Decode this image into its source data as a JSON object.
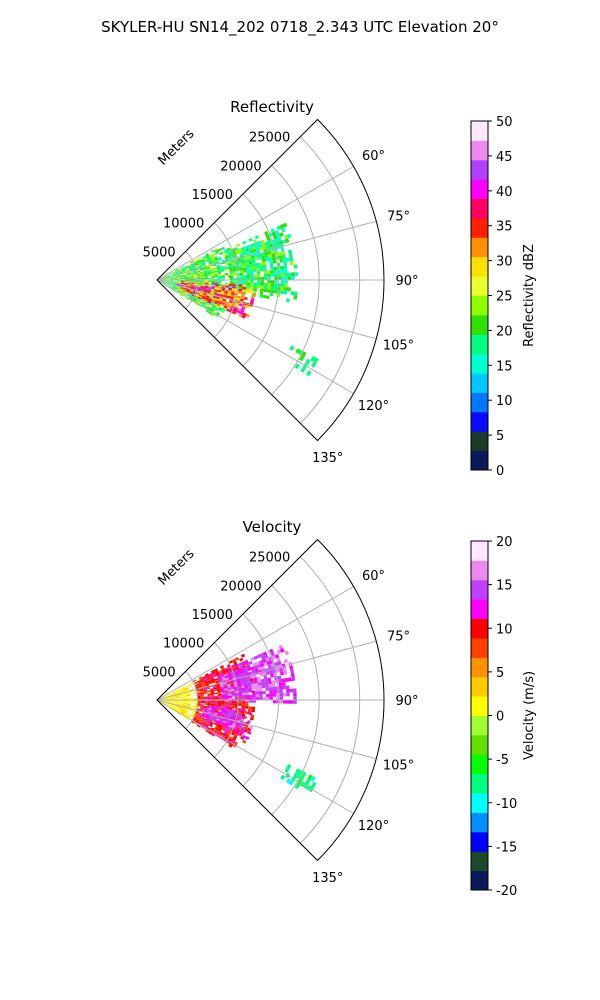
{
  "figure": {
    "suptitle": "SKYLER-HU  SN14_202  0718_2.343 UTC Elevation 20°"
  },
  "colors": {
    "axis": "#000000",
    "grid": "#b0b0b0",
    "reflectivity_cmap": [
      "#0a1a5a",
      "#1b3a2a",
      "#0a0aff",
      "#0077ff",
      "#00c8ff",
      "#00ffd0",
      "#00ff80",
      "#30e000",
      "#90ff00",
      "#e8ff30",
      "#ffe000",
      "#ff9000",
      "#ff2000",
      "#ff0060",
      "#ff00ff",
      "#b040ff",
      "#ee88ee",
      "#ffe8ff"
    ],
    "velocity_cmap": [
      "#0a1a5a",
      "#1b4a2a",
      "#0000ff",
      "#0090ff",
      "#00ffff",
      "#00ff80",
      "#00ff00",
      "#60e000",
      "#a0ff30",
      "#ffff00",
      "#ffcc00",
      "#ff9000",
      "#ff4000",
      "#ff0000",
      "#ff00ff",
      "#c040ff",
      "#ee88ee",
      "#ffe8ff"
    ]
  },
  "chart_data": [
    {
      "type": "heatmap",
      "projection": "polar-sector",
      "title": "Reflectivity",
      "radial_label": "Meters",
      "radial_ticks": [
        5000,
        10000,
        15000,
        20000,
        25000
      ],
      "radial_range": [
        0,
        28000
      ],
      "azimuth_range_deg": [
        45,
        135
      ],
      "azimuth_ticks": [
        "60°",
        "75°",
        "90°",
        "105°",
        "120°",
        "135°"
      ],
      "grid": true,
      "colorbar": {
        "label": "Reflectivity dBZ",
        "ticks": [
          0,
          5,
          10,
          15,
          20,
          25,
          30,
          35,
          40,
          45,
          50
        ],
        "range": [
          0,
          50
        ]
      },
      "echo_regions": [
        {
          "az_min": 62,
          "az_max": 122,
          "r_min": 0,
          "r_max": 9000,
          "value_min": 15,
          "value_max": 26
        },
        {
          "az_min": 66,
          "az_max": 98,
          "r_min": 9000,
          "r_max": 17000,
          "value_min": 14,
          "value_max": 24
        },
        {
          "az_min": 93,
          "az_max": 113,
          "r_min": 3000,
          "r_max": 12000,
          "value_min": 28,
          "value_max": 40
        },
        {
          "az_min": 98,
          "az_max": 104,
          "r_min": 2500,
          "r_max": 6500,
          "value_min": 36,
          "value_max": 46
        },
        {
          "az_min": 116,
          "az_max": 121,
          "r_min": 18000,
          "r_max": 22000,
          "value_min": 16,
          "value_max": 22
        }
      ]
    },
    {
      "type": "heatmap",
      "projection": "polar-sector",
      "title": "Velocity",
      "radial_label": "Meters",
      "radial_ticks": [
        5000,
        10000,
        15000,
        20000,
        25000
      ],
      "radial_range": [
        0,
        28000
      ],
      "azimuth_range_deg": [
        45,
        135
      ],
      "azimuth_ticks": [
        "60°",
        "75°",
        "90°",
        "105°",
        "120°",
        "135°"
      ],
      "grid": true,
      "colorbar": {
        "label": "Velocity (m/s)",
        "ticks": [
          -20,
          -15,
          -10,
          -5,
          0,
          5,
          10,
          15,
          20
        ],
        "range": [
          -20,
          20
        ]
      },
      "echo_regions": [
        {
          "az_min": 62,
          "az_max": 122,
          "r_min": 0,
          "r_max": 5000,
          "value_min": 0,
          "value_max": 3
        },
        {
          "az_min": 62,
          "az_max": 122,
          "r_min": 5000,
          "r_max": 12000,
          "value_min": 7,
          "value_max": 12
        },
        {
          "az_min": 66,
          "az_max": 90,
          "r_min": 8000,
          "r_max": 17000,
          "value_min": 12,
          "value_max": 17
        },
        {
          "az_min": 96,
          "az_max": 112,
          "r_min": 6000,
          "r_max": 12000,
          "value_min": 11,
          "value_max": 16
        },
        {
          "az_min": 116,
          "az_max": 121,
          "r_min": 18000,
          "r_max": 22000,
          "value_min": -10,
          "value_max": -6
        }
      ]
    }
  ]
}
